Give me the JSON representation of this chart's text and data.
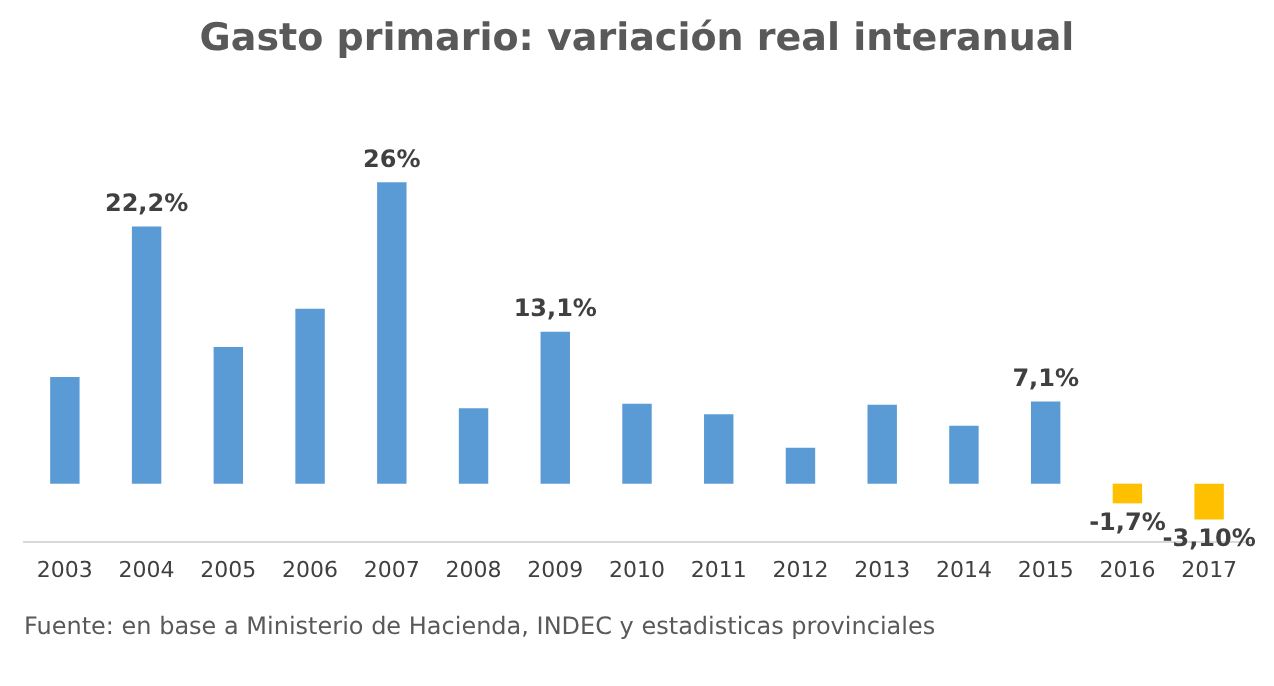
{
  "chart_data": {
    "type": "bar",
    "title": "Gasto primario: variación real interanual",
    "categories": [
      "2003",
      "2004",
      "2005",
      "2006",
      "2007",
      "2008",
      "2009",
      "2010",
      "2011",
      "2012",
      "2013",
      "2014",
      "2015",
      "2016",
      "2017"
    ],
    "values": [
      9.2,
      22.2,
      11.8,
      15.1,
      26,
      6.5,
      13.1,
      6.9,
      6.0,
      3.1,
      6.8,
      5.0,
      7.1,
      -1.7,
      -3.1
    ],
    "value_labels": [
      null,
      "22,2%",
      null,
      null,
      "26%",
      null,
      "13,1%",
      null,
      null,
      null,
      null,
      null,
      "7,1%",
      "-1,7%",
      "-3,10%"
    ],
    "colors": [
      "#5b9bd5",
      "#5b9bd5",
      "#5b9bd5",
      "#5b9bd5",
      "#5b9bd5",
      "#5b9bd5",
      "#5b9bd5",
      "#5b9bd5",
      "#5b9bd5",
      "#5b9bd5",
      "#5b9bd5",
      "#5b9bd5",
      "#5b9bd5",
      "#ffc000",
      "#ffc000"
    ],
    "tick_labels": "x",
    "grid": false,
    "legend": false,
    "annotations": [
      "Fuente: en base a Ministerio de Hacienda, INDEC y estadisticas provinciales"
    ]
  }
}
